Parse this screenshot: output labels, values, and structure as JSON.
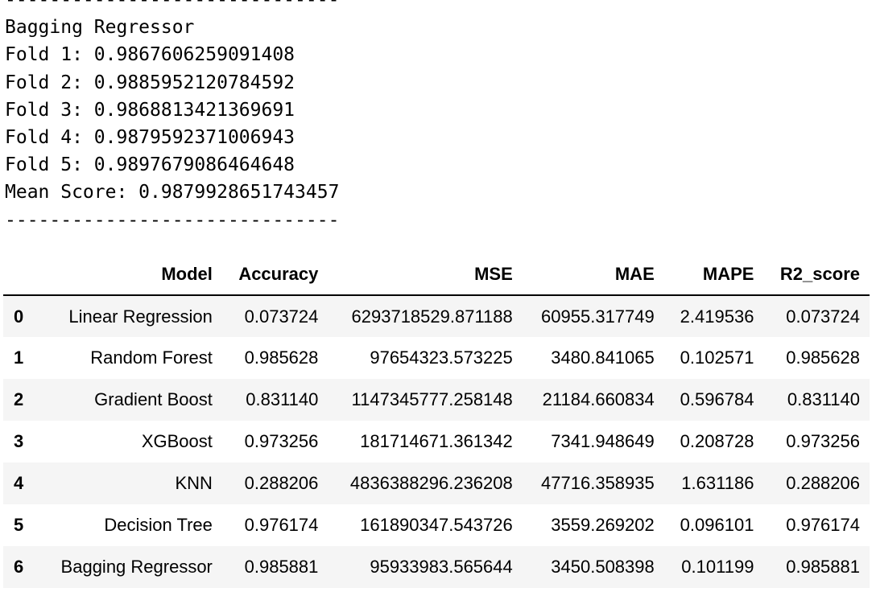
{
  "console": {
    "lines": [
      "------------------------------",
      "Bagging Regressor",
      "Fold 1: 0.9867606259091408",
      "Fold 2: 0.9885952120784592",
      "Fold 3: 0.9868813421369691",
      "Fold 4: 0.9879592371006943",
      "Fold 5: 0.9897679086464648",
      "Mean Score: 0.9879928651743457",
      "------------------------------"
    ]
  },
  "table": {
    "columns": [
      "",
      "Model",
      "Accuracy",
      "MSE",
      "MAE",
      "MAPE",
      "R2_score"
    ],
    "rows": [
      [
        "0",
        "Linear Regression",
        "0.073724",
        "6293718529.871188",
        "60955.317749",
        "2.419536",
        "0.073724"
      ],
      [
        "1",
        "Random Forest",
        "0.985628",
        "97654323.573225",
        "3480.841065",
        "0.102571",
        "0.985628"
      ],
      [
        "2",
        "Gradient Boost",
        "0.831140",
        "1147345777.258148",
        "21184.660834",
        "0.596784",
        "0.831140"
      ],
      [
        "3",
        "XGBoost",
        "0.973256",
        "181714671.361342",
        "7341.948649",
        "0.208728",
        "0.973256"
      ],
      [
        "4",
        "KNN",
        "0.288206",
        "4836388296.236208",
        "47716.358935",
        "1.631186",
        "0.288206"
      ],
      [
        "5",
        "Decision Tree",
        "0.976174",
        "161890347.543726",
        "3559.269202",
        "0.096101",
        "0.976174"
      ],
      [
        "6",
        "Bagging Regressor",
        "0.985881",
        "95933983.565644",
        "3450.508398",
        "0.101199",
        "0.985881"
      ]
    ]
  }
}
